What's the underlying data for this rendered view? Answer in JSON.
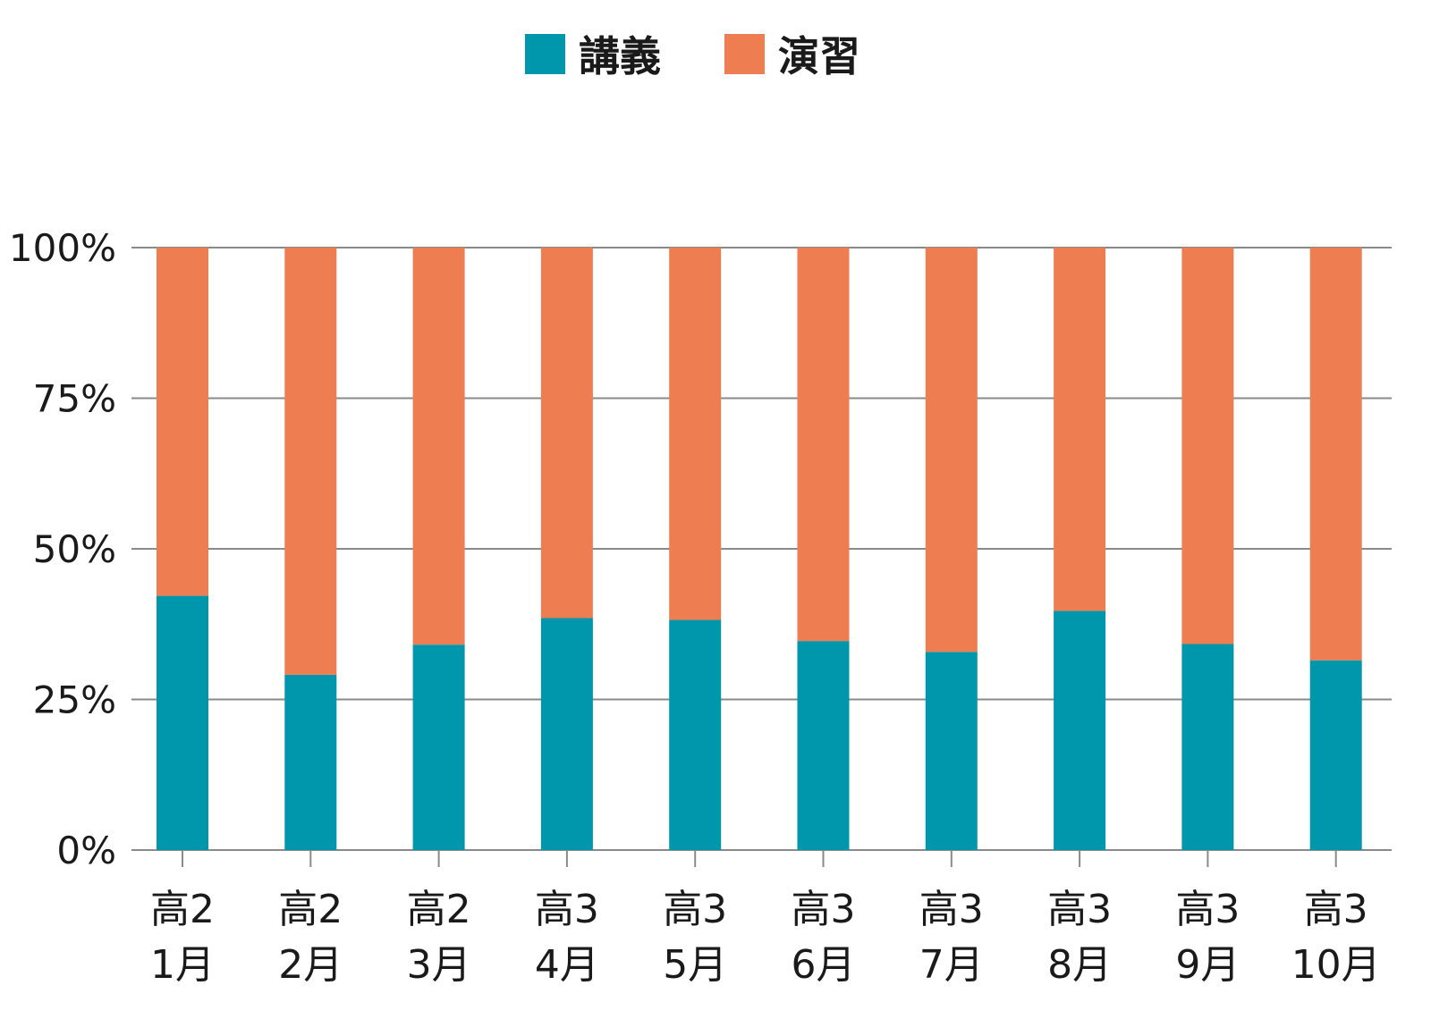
{
  "chart_data": {
    "type": "bar",
    "stacked": true,
    "categories": [
      [
        "高2",
        "1月"
      ],
      [
        "高2",
        "2月"
      ],
      [
        "高2",
        "3月"
      ],
      [
        "高3",
        "4月"
      ],
      [
        "高3",
        "5月"
      ],
      [
        "高3",
        "6月"
      ],
      [
        "高3",
        "7月"
      ],
      [
        "高3",
        "8月"
      ],
      [
        "高3",
        "9月"
      ],
      [
        "高3",
        "10月"
      ]
    ],
    "series": [
      {
        "name": "講義",
        "color": "#0097ac",
        "values": [
          42.2,
          29.1,
          34.1,
          38.5,
          38.2,
          34.7,
          32.9,
          39.7,
          34.2,
          31.5
        ]
      },
      {
        "name": "演習",
        "color": "#ee7d52",
        "values": [
          57.8,
          70.9,
          65.9,
          61.5,
          61.8,
          65.3,
          67.1,
          60.3,
          65.8,
          68.5
        ]
      }
    ],
    "ylim": [
      0,
      100
    ],
    "yticks": [
      "0%",
      "25%",
      "50%",
      "75%",
      "100%"
    ],
    "ytick_values": [
      0,
      25,
      50,
      75,
      100
    ],
    "grid": true,
    "legend_position": "top-center",
    "xlabel": "",
    "ylabel": "",
    "title": ""
  }
}
